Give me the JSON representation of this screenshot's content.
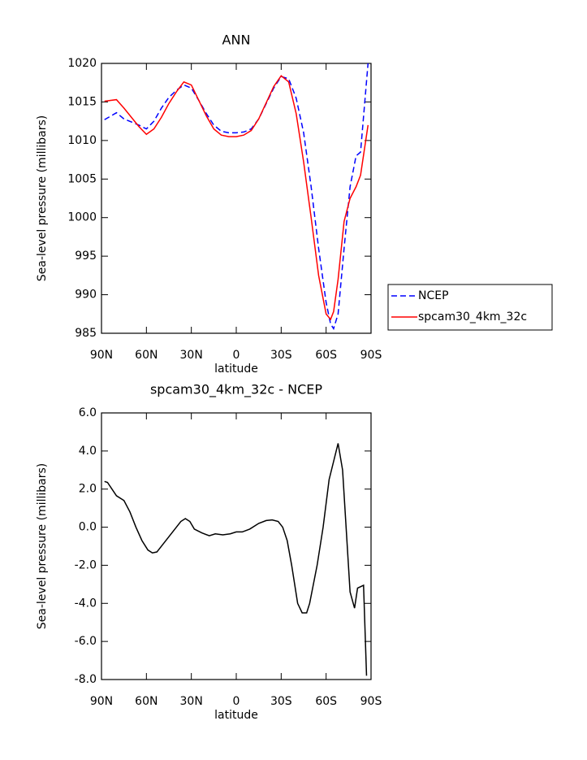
{
  "chart_data": [
    {
      "type": "line",
      "title": "ANN",
      "x_label": "latitude",
      "y_label": "Sea-level pressure (millibars)",
      "x": [
        88,
        80,
        75,
        70,
        65,
        60,
        55,
        50,
        45,
        40,
        35,
        30,
        25,
        20,
        15,
        10,
        5,
        0,
        -5,
        -10,
        -15,
        -20,
        -25,
        -30,
        -35,
        -40,
        -45,
        -50,
        -55,
        -60,
        -63,
        -65,
        -68,
        -72,
        -76,
        -80,
        -83,
        -88
      ],
      "xlim": [
        90,
        -90
      ],
      "xticks": [
        {
          "value": 90,
          "label": "90N"
        },
        {
          "value": 60,
          "label": "60N"
        },
        {
          "value": 30,
          "label": "30N"
        },
        0,
        {
          "value": -30,
          "label": "30S"
        },
        {
          "value": -60,
          "label": "60S"
        },
        {
          "value": -90,
          "label": "90S"
        }
      ],
      "ylim": [
        985,
        1020
      ],
      "yticks": [
        985,
        990,
        995,
        1000,
        1005,
        1010,
        1015,
        1020
      ],
      "legend": "right",
      "series": [
        {
          "name": "NCEP",
          "color": "#0000ff",
          "dash": "dashed",
          "values": [
            1012.7,
            1013.6,
            1012.8,
            1012.4,
            1012.0,
            1011.5,
            1012.5,
            1014.2,
            1015.6,
            1016.5,
            1017.2,
            1016.8,
            1015.2,
            1013.5,
            1012.0,
            1011.2,
            1011.0,
            1011.0,
            1011.1,
            1011.5,
            1012.8,
            1014.8,
            1016.8,
            1018.3,
            1018.0,
            1015.5,
            1011,
            1004,
            996,
            989,
            986.2,
            985.6,
            987.5,
            996,
            1004,
            1008,
            1008.5,
            1020
          ]
        },
        {
          "name": "spcam30_4km_32c",
          "color": "#ff0000",
          "dash": "solid",
          "values": [
            1015.1,
            1015.3,
            1014.2,
            1013.0,
            1011.8,
            1010.8,
            1011.5,
            1013.0,
            1014.8,
            1016.3,
            1017.6,
            1017.2,
            1015.2,
            1013.2,
            1011.5,
            1010.7,
            1010.5,
            1010.5,
            1010.7,
            1011.3,
            1012.8,
            1014.9,
            1017.0,
            1018.4,
            1017.6,
            1013.5,
            1007.2,
            1000,
            992.5,
            987.5,
            986.8,
            987.8,
            992,
            999.5,
            1002.5,
            1004,
            1005.5,
            1012
          ]
        }
      ]
    },
    {
      "type": "line",
      "title": "spcam30_4km_32c - NCEP",
      "x_label": "latitude",
      "y_label": "Sea-level pressure (millibars)",
      "x": [
        88,
        86,
        80,
        75,
        71,
        67,
        63,
        59,
        56,
        53,
        49,
        45,
        41,
        37,
        34,
        31,
        28,
        23,
        18,
        14,
        9,
        4,
        0,
        -4,
        -9,
        -15,
        -20,
        -24,
        -28,
        -31,
        -34,
        -37,
        -41,
        -44,
        -47,
        -49,
        -54,
        -58,
        -62,
        -68,
        -71,
        -76,
        -79,
        -81,
        -85,
        -87
      ],
      "xlim": [
        90,
        -90
      ],
      "xticks": [
        {
          "value": 90,
          "label": "90N"
        },
        {
          "value": 60,
          "label": "60N"
        },
        {
          "value": 30,
          "label": "30N"
        },
        0,
        {
          "value": -30,
          "label": "30S"
        },
        {
          "value": -60,
          "label": "60S"
        },
        {
          "value": -90,
          "label": "90S"
        }
      ],
      "ylim": [
        -8,
        6
      ],
      "yticks": [
        {
          "value": -8,
          "label": "-8.0"
        },
        {
          "value": -6,
          "label": "-6.0"
        },
        {
          "value": -4,
          "label": "-4.0"
        },
        {
          "value": -2,
          "label": "-2.0"
        },
        {
          "value": 0,
          "label": "0.0"
        },
        {
          "value": 2,
          "label": "2.0"
        },
        {
          "value": 4,
          "label": "4.0"
        },
        {
          "value": 6,
          "label": "6.0"
        }
      ],
      "series": [
        {
          "color": "#000000",
          "dash": "solid",
          "values": [
            2.4,
            2.35,
            1.65,
            1.4,
            0.8,
            0.0,
            -0.7,
            -1.2,
            -1.35,
            -1.3,
            -0.9,
            -0.5,
            -0.1,
            0.3,
            0.45,
            0.3,
            -0.1,
            -0.3,
            -0.45,
            -0.35,
            -0.4,
            -0.35,
            -0.25,
            -0.25,
            -0.1,
            0.2,
            0.35,
            0.38,
            0.3,
            0.0,
            -0.7,
            -2.0,
            -4.0,
            -4.5,
            -4.5,
            -4.0,
            -2.0,
            0.0,
            2.5,
            4.4,
            3.0,
            -3.4,
            -4.25,
            -3.2,
            -3.05,
            -7.8
          ]
        }
      ]
    }
  ]
}
